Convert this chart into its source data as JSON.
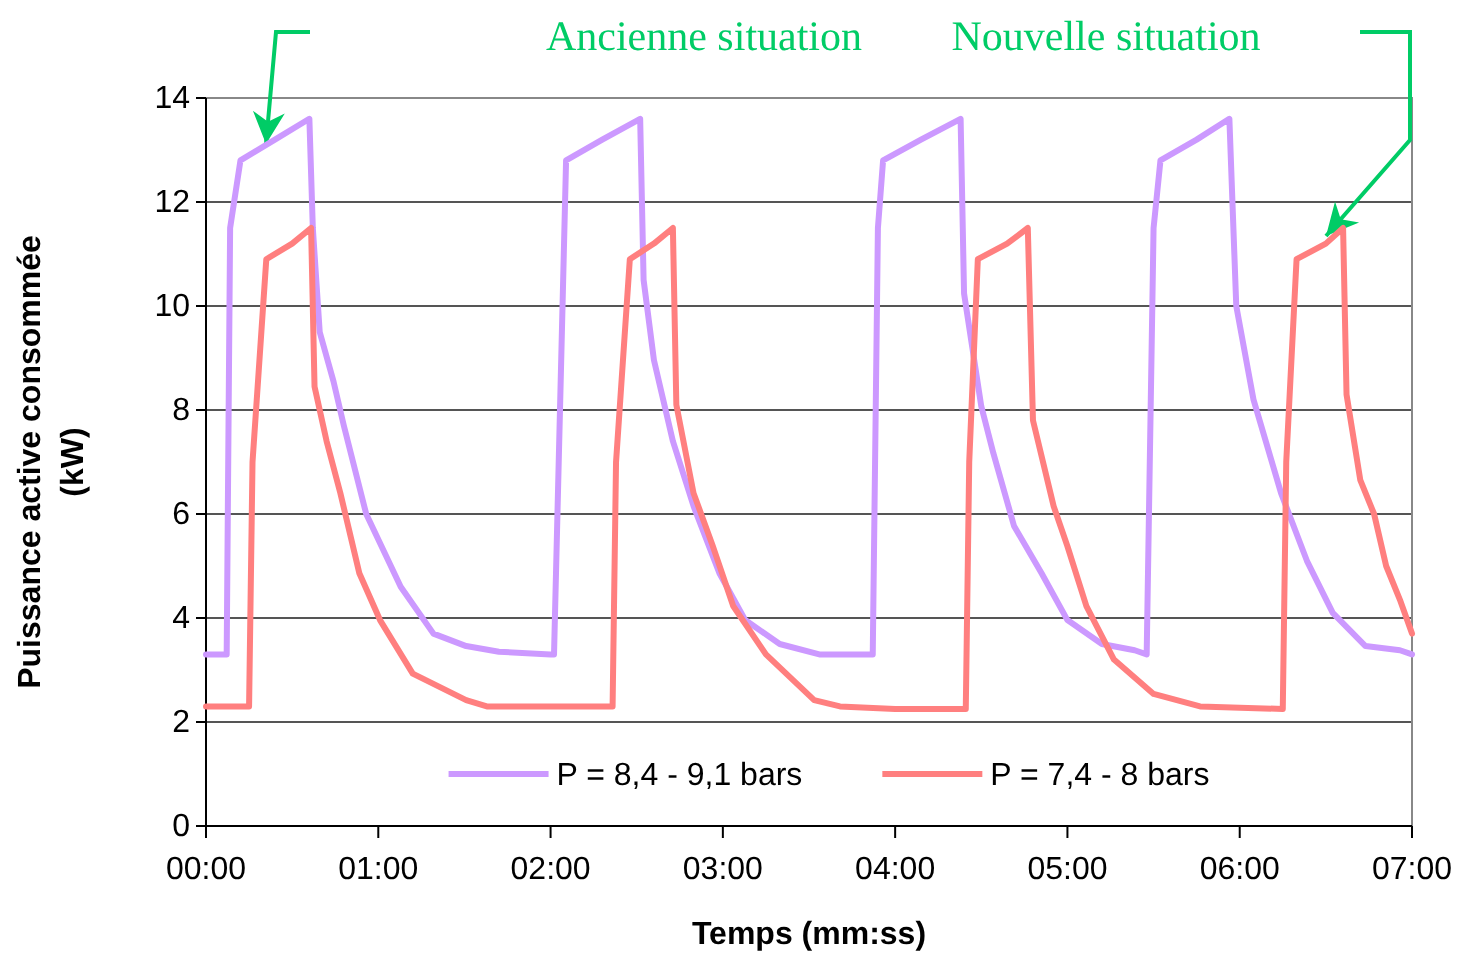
{
  "chart_data": {
    "type": "line",
    "xlabel": "Temps (mm:ss)",
    "ylabel": "Puissance active consommée (kW)",
    "xlim": [
      0,
      7
    ],
    "xticks": [
      {
        "value": 0,
        "label": "00:00"
      },
      {
        "value": 1,
        "label": "01:00"
      },
      {
        "value": 2,
        "label": "02:00"
      },
      {
        "value": 3,
        "label": "03:00"
      },
      {
        "value": 4,
        "label": "04:00"
      },
      {
        "value": 5,
        "label": "05:00"
      },
      {
        "value": 6,
        "label": "06:00"
      },
      {
        "value": 7,
        "label": "07:00"
      }
    ],
    "ylim": [
      0,
      14
    ],
    "yticks": [
      0,
      2,
      4,
      6,
      8,
      10,
      12,
      14
    ],
    "grid": "y",
    "legend": "bottom",
    "line_style": "solid",
    "marker": "none",
    "series": [
      {
        "name": "P = 8,4 - 9,1 bars",
        "color": "#cc99ff",
        "x": [
          0,
          0.12,
          0.14,
          0.2,
          0.4,
          0.6,
          0.62,
          0.66,
          0.74,
          0.8,
          0.93,
          1.13,
          1.32,
          1.51,
          1.7,
          2.0,
          2.02,
          2.09,
          2.3,
          2.52,
          2.54,
          2.6,
          2.71,
          2.83,
          2.98,
          3.13,
          3.33,
          3.56,
          3.87,
          3.9,
          3.93,
          4.15,
          4.38,
          4.4,
          4.5,
          4.57,
          4.69,
          4.85,
          5.0,
          5.2,
          5.39,
          5.46,
          5.5,
          5.54,
          5.75,
          5.94,
          5.98,
          6.08,
          6.24,
          6.39,
          6.54,
          6.73,
          6.93,
          7.0
        ],
        "values": [
          3.3,
          3.3,
          11.5,
          12.8,
          13.2,
          13.6,
          11.5,
          9.5,
          8.55,
          7.7,
          6.0,
          4.6,
          3.7,
          3.46,
          3.35,
          3.3,
          3.3,
          12.8,
          13.2,
          13.6,
          10.5,
          8.96,
          7.4,
          6.15,
          4.86,
          3.96,
          3.5,
          3.3,
          3.3,
          11.5,
          12.8,
          13.2,
          13.6,
          10.24,
          8.07,
          7.17,
          5.77,
          4.86,
          3.96,
          3.5,
          3.38,
          3.3,
          11.5,
          12.8,
          13.2,
          13.6,
          10.0,
          8.2,
          6.4,
          5.1,
          4.1,
          3.46,
          3.38,
          3.3
        ]
      },
      {
        "name": "P = 7,4 - 8 bars",
        "color": "#ff7f7f",
        "x": [
          0,
          0.25,
          0.27,
          0.35,
          0.5,
          0.61,
          0.63,
          0.7,
          0.78,
          0.89,
          1.01,
          1.2,
          1.51,
          1.63,
          2.0,
          2.36,
          2.38,
          2.46,
          2.6,
          2.71,
          2.73,
          2.83,
          2.94,
          3.06,
          3.25,
          3.53,
          3.68,
          4.0,
          4.41,
          4.43,
          4.48,
          4.65,
          4.77,
          4.8,
          4.92,
          5.0,
          5.11,
          5.27,
          5.5,
          5.77,
          6.25,
          6.27,
          6.33,
          6.5,
          6.6,
          6.62,
          6.7,
          6.78,
          6.85,
          6.93,
          7.0
        ],
        "values": [
          2.3,
          2.3,
          7.0,
          10.9,
          11.2,
          11.5,
          8.45,
          7.4,
          6.4,
          4.86,
          3.96,
          2.93,
          2.42,
          2.3,
          2.3,
          2.3,
          7.0,
          10.9,
          11.2,
          11.5,
          8.1,
          6.4,
          5.4,
          4.23,
          3.3,
          2.42,
          2.3,
          2.25,
          2.25,
          7.0,
          10.9,
          11.2,
          11.5,
          7.8,
          6.15,
          5.38,
          4.23,
          3.2,
          2.54,
          2.3,
          2.25,
          7.0,
          10.9,
          11.2,
          11.5,
          8.3,
          6.65,
          6.0,
          5.0,
          4.35,
          3.7
        ]
      }
    ],
    "annotations": [
      "Ancienne situation",
      "Nouvelle situation"
    ]
  }
}
